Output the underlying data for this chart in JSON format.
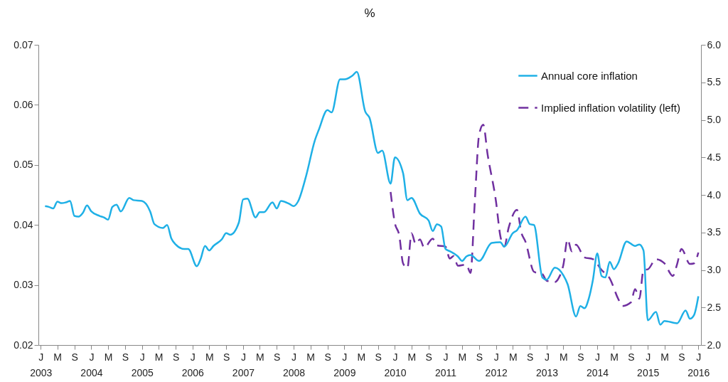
{
  "chart_data": {
    "type": "line",
    "title": "%",
    "xlim": [
      "2002-12-15",
      "2016-01-20"
    ],
    "xticks": [
      {
        "value": "2003-01",
        "label": "J\n2003"
      },
      {
        "value": "2003-05",
        "label": "M"
      },
      {
        "value": "2003-09",
        "label": "S"
      },
      {
        "value": "2004-01",
        "label": "J\n2004"
      },
      {
        "value": "2004-05",
        "label": "M"
      },
      {
        "value": "2004-09",
        "label": "S"
      },
      {
        "value": "2005-01",
        "label": "J\n2005"
      },
      {
        "value": "2005-05",
        "label": "M"
      },
      {
        "value": "2005-09",
        "label": "S"
      },
      {
        "value": "2006-01",
        "label": "J\n2006"
      },
      {
        "value": "2006-05",
        "label": "M"
      },
      {
        "value": "2006-09",
        "label": "S"
      },
      {
        "value": "2007-01",
        "label": "J\n2007"
      },
      {
        "value": "2007-05",
        "label": "M"
      },
      {
        "value": "2007-09",
        "label": "S"
      },
      {
        "value": "2008-01",
        "label": "J\n2008"
      },
      {
        "value": "2008-05",
        "label": "M"
      },
      {
        "value": "2008-09",
        "label": "S"
      },
      {
        "value": "2009-01",
        "label": "J\n2009"
      },
      {
        "value": "2009-05",
        "label": "M"
      },
      {
        "value": "2009-09",
        "label": "S"
      },
      {
        "value": "2010-01",
        "label": "J\n2010"
      },
      {
        "value": "2010-05",
        "label": "M"
      },
      {
        "value": "2010-09",
        "label": "S"
      },
      {
        "value": "2011-01",
        "label": "J\n2011"
      },
      {
        "value": "2011-05",
        "label": "M"
      },
      {
        "value": "2011-09",
        "label": "S"
      },
      {
        "value": "2012-01",
        "label": "J\n2012"
      },
      {
        "value": "2012-05",
        "label": "M"
      },
      {
        "value": "2012-09",
        "label": "S"
      },
      {
        "value": "2013-01",
        "label": "J\n2013"
      },
      {
        "value": "2013-05",
        "label": "M"
      },
      {
        "value": "2013-09",
        "label": "S"
      },
      {
        "value": "2014-01",
        "label": "J\n2014"
      },
      {
        "value": "2014-05",
        "label": "M"
      },
      {
        "value": "2014-09",
        "label": "S"
      },
      {
        "value": "2015-01",
        "label": "J\n2015"
      },
      {
        "value": "2015-05",
        "label": "M"
      },
      {
        "value": "2015-09",
        "label": "S"
      },
      {
        "value": "2016-01",
        "label": "J\n2016"
      }
    ],
    "ylim": [
      0.02,
      0.07
    ],
    "yticks": [
      0.02,
      0.03,
      0.04,
      0.05,
      0.06,
      0.07
    ],
    "y2lim": [
      2.0,
      6.0
    ],
    "y2ticks": [
      {
        "value": 2,
        "label": "2.0"
      },
      {
        "value": 2.5,
        "label": "2.5"
      },
      {
        "value": 3,
        "label": "3.0"
      },
      {
        "value": 3.5,
        "label": "3.5"
      },
      {
        "value": 4,
        "label": "4.0"
      },
      {
        "value": 4.5,
        "label": "4.5"
      },
      {
        "value": 5,
        "label": "5.0"
      },
      {
        "value": 5.5,
        "label": "5.5"
      },
      {
        "value": 6,
        "label": "6.0"
      }
    ],
    "legend": "top right",
    "series": [
      {
        "name": "Annual core inflation",
        "color": "#1fb0e6",
        "line_style": "solid",
        "axis": "y2",
        "x": [
          "2003-02",
          "2003-03",
          "2003-04",
          "2003-05",
          "2003-06",
          "2003-07",
          "2003-08",
          "2003-09",
          "2003-10",
          "2003-11",
          "2003-12",
          "2004-01",
          "2004-03",
          "2004-04",
          "2004-05",
          "2004-06",
          "2004-07",
          "2004-08",
          "2004-10",
          "2004-11",
          "2005-01",
          "2005-03",
          "2005-04",
          "2005-06",
          "2005-07",
          "2005-08",
          "2005-09",
          "2005-11",
          "2005-12",
          "2006-02",
          "2006-03",
          "2006-04",
          "2006-05",
          "2006-06",
          "2006-08",
          "2006-09",
          "2006-10",
          "2006-12",
          "2007-01",
          "2007-02",
          "2007-04",
          "2007-05",
          "2007-06",
          "2007-08",
          "2007-09",
          "2007-10",
          "2007-12",
          "2008-01",
          "2008-02",
          "2008-04",
          "2008-06",
          "2008-07",
          "2008-09",
          "2008-10",
          "2008-12",
          "2009-01",
          "2009-03",
          "2009-04",
          "2009-06",
          "2009-07",
          "2009-09",
          "2009-10",
          "2009-12",
          "2010-01",
          "2010-03",
          "2010-04",
          "2010-05",
          "2010-07",
          "2010-09",
          "2010-10",
          "2010-11",
          "2010-12",
          "2011-01",
          "2011-02",
          "2011-04",
          "2011-05",
          "2011-06",
          "2011-07",
          "2011-09",
          "2011-12",
          "2012-02",
          "2012-03",
          "2012-05",
          "2012-06",
          "2012-08",
          "2012-09",
          "2012-10",
          "2012-12",
          "2013-01",
          "2013-03",
          "2013-05",
          "2013-06",
          "2013-08",
          "2013-09",
          "2013-10",
          "2013-11",
          "2013-12",
          "2014-01",
          "2014-02",
          "2014-03",
          "2014-04",
          "2014-05",
          "2014-06",
          "2014-08",
          "2014-10",
          "2014-11",
          "2014-12",
          "2015-01",
          "2015-03",
          "2015-04",
          "2015-05",
          "2015-08",
          "2015-10",
          "2015-11",
          "2015-12",
          "2016-01"
        ],
        "values": [
          3.85,
          3.84,
          3.82,
          3.91,
          3.89,
          3.9,
          3.92,
          3.72,
          3.71,
          3.76,
          3.86,
          3.78,
          3.72,
          3.7,
          3.67,
          3.84,
          3.87,
          3.78,
          3.96,
          3.93,
          3.92,
          3.78,
          3.61,
          3.56,
          3.6,
          3.42,
          3.34,
          3.28,
          3.28,
          3.05,
          3.15,
          3.32,
          3.26,
          3.32,
          3.41,
          3.49,
          3.47,
          3.63,
          3.94,
          3.95,
          3.7,
          3.77,
          3.77,
          3.9,
          3.82,
          3.92,
          3.88,
          3.85,
          3.91,
          4.26,
          4.72,
          4.87,
          5.13,
          5.1,
          5.54,
          5.54,
          5.59,
          5.64,
          5.11,
          5.03,
          4.56,
          4.59,
          4.15,
          4.5,
          4.29,
          3.93,
          3.96,
          3.75,
          3.66,
          3.52,
          3.61,
          3.58,
          3.28,
          3.25,
          3.18,
          3.12,
          3.18,
          3.2,
          3.12,
          3.36,
          3.37,
          3.31,
          3.49,
          3.53,
          3.71,
          3.61,
          3.6,
          2.9,
          2.87,
          3.03,
          2.93,
          2.81,
          2.38,
          2.52,
          2.49,
          2.62,
          2.87,
          3.22,
          2.92,
          2.9,
          3.11,
          3.01,
          3.09,
          3.38,
          3.32,
          3.34,
          3.26,
          2.33,
          2.44,
          2.27,
          2.32,
          2.29,
          2.46,
          2.35,
          2.4,
          2.65
        ]
      },
      {
        "name": "Implied inflation volatility (left)",
        "color": "#7030a0",
        "line_style": "dashed",
        "axis": "y",
        "x": [
          "2009-12",
          "2010-01",
          "2010-02",
          "2010-03",
          "2010-04",
          "2010-05",
          "2010-06",
          "2010-07",
          "2010-08",
          "2010-10",
          "2010-11",
          "2011-01",
          "2011-02",
          "2011-03",
          "2011-04",
          "2011-06",
          "2011-07",
          "2011-08",
          "2011-09",
          "2011-10",
          "2011-11",
          "2012-01",
          "2012-02",
          "2012-03",
          "2012-04",
          "2012-06",
          "2012-07",
          "2012-08",
          "2012-10",
          "2012-12",
          "2013-01",
          "2013-03",
          "2013-04",
          "2013-05",
          "2013-06",
          "2013-07",
          "2013-08",
          "2013-10",
          "2013-12",
          "2014-02",
          "2014-04",
          "2014-06",
          "2014-07",
          "2014-09",
          "2014-10",
          "2014-11",
          "2014-12",
          "2015-01",
          "2015-03",
          "2015-05",
          "2015-07",
          "2015-08",
          "2015-09",
          "2015-11",
          "2015-12",
          "2016-01"
        ],
        "values": [
          0.0455,
          0.0403,
          0.0383,
          0.0336,
          0.0328,
          0.0386,
          0.0368,
          0.0376,
          0.0362,
          0.0377,
          0.0366,
          0.0364,
          0.0344,
          0.0348,
          0.0332,
          0.0334,
          0.032,
          0.0439,
          0.055,
          0.0567,
          0.0518,
          0.0439,
          0.0382,
          0.0364,
          0.0395,
          0.0425,
          0.0388,
          0.0372,
          0.0322,
          0.0318,
          0.0307,
          0.0305,
          0.0313,
          0.0333,
          0.0376,
          0.0356,
          0.0367,
          0.0346,
          0.0343,
          0.0325,
          0.0311,
          0.0277,
          0.0265,
          0.0271,
          0.0293,
          0.0277,
          0.0325,
          0.0326,
          0.0343,
          0.0336,
          0.0315,
          0.0335,
          0.036,
          0.0335,
          0.0336,
          0.0354
        ]
      }
    ]
  }
}
